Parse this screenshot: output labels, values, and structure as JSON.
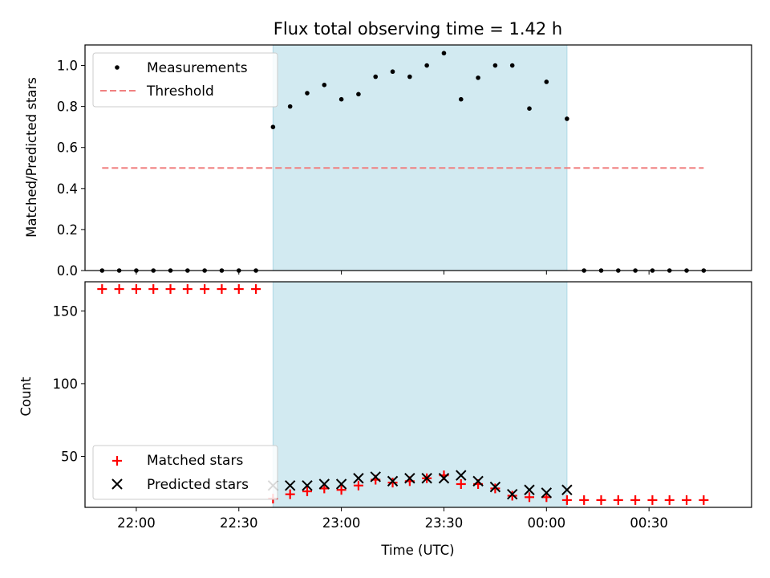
{
  "chart_data": [
    {
      "type": "scatter",
      "title": "Flux total observing time = 1.42 h",
      "ylabel": "Matched/Predicted stars",
      "xlabel": "",
      "ylim": [
        0,
        1.1
      ],
      "yticks": [
        0.0,
        0.2,
        0.4,
        0.6,
        0.8,
        1.0
      ],
      "ytick_labels": [
        "0.0",
        "0.2",
        "0.4",
        "0.6",
        "0.8",
        "1.0"
      ],
      "x_range": [
        "21:45",
        "01:00"
      ],
      "shaded_span": [
        "22:40",
        "00:06"
      ],
      "shade_color": "#add8e6",
      "legend_position": "top-left",
      "series": [
        {
          "name": "Measurements",
          "marker": "dot",
          "color": "#000000",
          "x": [
            "21:50",
            "21:55",
            "22:00",
            "22:05",
            "22:10",
            "22:15",
            "22:20",
            "22:25",
            "22:30",
            "22:35",
            "22:40",
            "22:45",
            "22:50",
            "22:55",
            "23:00",
            "23:05",
            "23:10",
            "23:15",
            "23:20",
            "23:25",
            "23:30",
            "23:35",
            "23:40",
            "23:45",
            "23:50",
            "23:55",
            "00:00",
            "00:06",
            "00:11",
            "00:16",
            "00:21",
            "00:26",
            "00:31",
            "00:36",
            "00:41",
            "00:46"
          ],
          "y": [
            0,
            0,
            0,
            0,
            0,
            0,
            0,
            0,
            0,
            0,
            0.7,
            0.8,
            0.865,
            0.905,
            0.835,
            0.86,
            0.945,
            0.97,
            0.945,
            1.0,
            1.06,
            0.835,
            0.94,
            1.0,
            1.0,
            0.79,
            0.92,
            0.74,
            0,
            0,
            0,
            0,
            0,
            0,
            0,
            0
          ]
        },
        {
          "name": "Threshold",
          "line_style": "dashed",
          "color": "#f08080",
          "x": [
            "21:50",
            "00:46"
          ],
          "y": [
            0.5,
            0.5
          ]
        }
      ]
    },
    {
      "type": "scatter",
      "title": "",
      "ylabel": "Count",
      "xlabel": "Time (UTC)",
      "ylim": [
        15,
        170
      ],
      "yticks": [
        50,
        100,
        150
      ],
      "ytick_labels": [
        "50",
        "100",
        "150"
      ],
      "x_range": [
        "21:45",
        "01:00"
      ],
      "xticks": [
        "22:00",
        "22:30",
        "23:00",
        "23:30",
        "00:00",
        "00:30"
      ],
      "xtick_labels": [
        "22:00",
        "22:30",
        "23:00",
        "23:30",
        "00:00",
        "00:30"
      ],
      "shaded_span": [
        "22:40",
        "00:06"
      ],
      "shade_color": "#add8e6",
      "legend_position": "bottom-left",
      "series": [
        {
          "name": "Matched stars",
          "marker": "plus",
          "color": "#ff0000",
          "x": [
            "21:50",
            "21:55",
            "22:00",
            "22:05",
            "22:10",
            "22:15",
            "22:20",
            "22:25",
            "22:30",
            "22:35",
            "22:40",
            "22:45",
            "22:50",
            "22:55",
            "23:00",
            "23:05",
            "23:10",
            "23:15",
            "23:20",
            "23:25",
            "23:30",
            "23:35",
            "23:40",
            "23:45",
            "23:50",
            "23:55",
            "00:00",
            "00:06",
            "00:11",
            "00:16",
            "00:21",
            "00:26",
            "00:31",
            "00:36",
            "00:41",
            "00:46"
          ],
          "y": [
            165,
            165,
            165,
            165,
            165,
            165,
            165,
            165,
            165,
            165,
            21,
            24,
            26,
            28,
            27,
            30,
            34,
            32,
            33,
            35,
            37,
            31,
            31,
            28,
            23,
            22,
            22,
            20,
            20,
            20,
            20,
            20,
            20,
            20,
            20,
            20
          ]
        },
        {
          "name": "Predicted stars",
          "marker": "x",
          "color": "#000000",
          "x": [
            "22:40",
            "22:45",
            "22:50",
            "22:55",
            "23:00",
            "23:05",
            "23:10",
            "23:15",
            "23:20",
            "23:25",
            "23:30",
            "23:35",
            "23:40",
            "23:45",
            "23:50",
            "23:55",
            "00:00",
            "00:06"
          ],
          "y": [
            30,
            30,
            30,
            31,
            31,
            35,
            36,
            33,
            35,
            35,
            35,
            37,
            33,
            29,
            24,
            27,
            25,
            27
          ]
        }
      ]
    }
  ]
}
